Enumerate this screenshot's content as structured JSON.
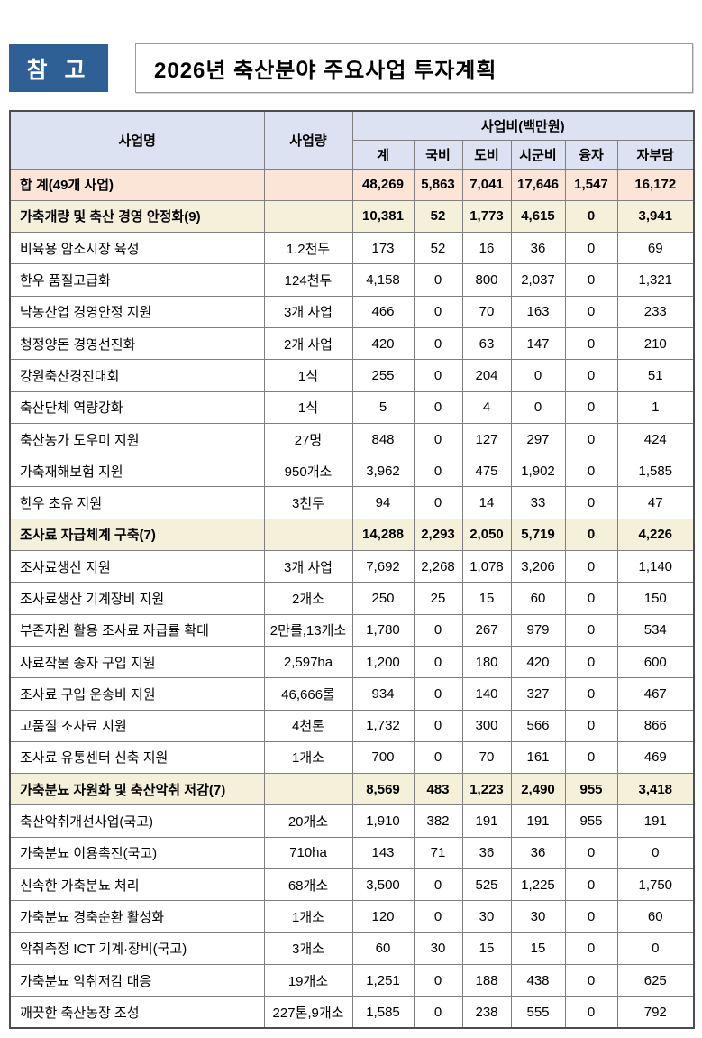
{
  "page": {
    "badge_label": "참 고",
    "title": "2026년 축산분야 주요사업 투자계획"
  },
  "colors": {
    "badge_bg": "#2e6096",
    "header_bg": "#dce2f1",
    "total_bg": "#fbe5d6",
    "section_bg": "#f5f0da",
    "border": "#7f7f7f"
  },
  "table": {
    "headers": {
      "name": "사업명",
      "quantity": "사업량",
      "cost_group": "사업비(백만원)",
      "cost_cols": [
        "계",
        "국비",
        "도비",
        "시군비",
        "융자",
        "자부담"
      ]
    },
    "rows": [
      {
        "type": "total",
        "name": "합 계(49개 사업)",
        "quantity": "",
        "values": [
          "48,269",
          "5,863",
          "7,041",
          "17,646",
          "1,547",
          "16,172"
        ]
      },
      {
        "type": "section",
        "name": "가축개량 및 축산 경영 안정화(9)",
        "quantity": "",
        "values": [
          "10,381",
          "52",
          "1,773",
          "4,615",
          "0",
          "3,941"
        ]
      },
      {
        "type": "item",
        "name": "비육용 암소시장 육성",
        "quantity": "1.2천두",
        "values": [
          "173",
          "52",
          "16",
          "36",
          "0",
          "69"
        ]
      },
      {
        "type": "item",
        "name": "한우 품질고급화",
        "quantity": "124천두",
        "values": [
          "4,158",
          "0",
          "800",
          "2,037",
          "0",
          "1,321"
        ]
      },
      {
        "type": "item",
        "name": "낙농산업 경영안정 지원",
        "quantity": "3개 사업",
        "values": [
          "466",
          "0",
          "70",
          "163",
          "0",
          "233"
        ]
      },
      {
        "type": "item",
        "name": "청정양돈 경영선진화",
        "quantity": "2개 사업",
        "values": [
          "420",
          "0",
          "63",
          "147",
          "0",
          "210"
        ]
      },
      {
        "type": "item",
        "name": "강원축산경진대회",
        "quantity": "1식",
        "values": [
          "255",
          "0",
          "204",
          "0",
          "0",
          "51"
        ]
      },
      {
        "type": "item",
        "name": "축산단체 역량강화",
        "quantity": "1식",
        "values": [
          "5",
          "0",
          "4",
          "0",
          "0",
          "1"
        ]
      },
      {
        "type": "item",
        "name": "축산농가 도우미 지원",
        "quantity": "27명",
        "values": [
          "848",
          "0",
          "127",
          "297",
          "0",
          "424"
        ]
      },
      {
        "type": "item",
        "name": "가축재해보험 지원",
        "quantity": "950개소",
        "values": [
          "3,962",
          "0",
          "475",
          "1,902",
          "0",
          "1,585"
        ]
      },
      {
        "type": "item",
        "name": "한우 초유 지원",
        "quantity": "3천두",
        "values": [
          "94",
          "0",
          "14",
          "33",
          "0",
          "47"
        ]
      },
      {
        "type": "section",
        "name": "조사료 자급체계 구축(7)",
        "quantity": "",
        "values": [
          "14,288",
          "2,293",
          "2,050",
          "5,719",
          "0",
          "4,226"
        ]
      },
      {
        "type": "item",
        "name": "조사료생산 지원",
        "quantity": "3개 사업",
        "values": [
          "7,692",
          "2,268",
          "1,078",
          "3,206",
          "0",
          "1,140"
        ]
      },
      {
        "type": "item",
        "name": "조사료생산 기계장비 지원",
        "quantity": "2개소",
        "values": [
          "250",
          "25",
          "15",
          "60",
          "0",
          "150"
        ]
      },
      {
        "type": "item",
        "name": "부존자원 활용 조사료 자급률 확대",
        "quantity": "2만롤,13개소",
        "values": [
          "1,780",
          "0",
          "267",
          "979",
          "0",
          "534"
        ]
      },
      {
        "type": "item",
        "name": "사료작물 종자 구입 지원",
        "quantity": "2,597ha",
        "values": [
          "1,200",
          "0",
          "180",
          "420",
          "0",
          "600"
        ]
      },
      {
        "type": "item",
        "name": "조사료 구입 운송비 지원",
        "quantity": "46,666롤",
        "values": [
          "934",
          "0",
          "140",
          "327",
          "0",
          "467"
        ]
      },
      {
        "type": "item",
        "name": "고품질 조사료 지원",
        "quantity": "4천톤",
        "values": [
          "1,732",
          "0",
          "300",
          "566",
          "0",
          "866"
        ]
      },
      {
        "type": "item",
        "name": "조사료 유통센터 신축 지원",
        "quantity": "1개소",
        "values": [
          "700",
          "0",
          "70",
          "161",
          "0",
          "469"
        ]
      },
      {
        "type": "section",
        "name": "가축분뇨 자원화 및 축산악취 저감(7)",
        "quantity": "",
        "values": [
          "8,569",
          "483",
          "1,223",
          "2,490",
          "955",
          "3,418"
        ]
      },
      {
        "type": "item",
        "name": "축산악취개선사업(국고)",
        "quantity": "20개소",
        "values": [
          "1,910",
          "382",
          "191",
          "191",
          "955",
          "191"
        ]
      },
      {
        "type": "item",
        "name": "가축분뇨 이용촉진(국고)",
        "quantity": "710ha",
        "values": [
          "143",
          "71",
          "36",
          "36",
          "0",
          "0"
        ]
      },
      {
        "type": "item",
        "name": "신속한 가축분뇨 처리",
        "quantity": "68개소",
        "values": [
          "3,500",
          "0",
          "525",
          "1,225",
          "0",
          "1,750"
        ]
      },
      {
        "type": "item",
        "name": "가축분뇨 경축순환 활성화",
        "quantity": "1개소",
        "values": [
          "120",
          "0",
          "30",
          "30",
          "0",
          "60"
        ]
      },
      {
        "type": "item",
        "name": "악취측정 ICT 기계·장비(국고)",
        "quantity": "3개소",
        "values": [
          "60",
          "30",
          "15",
          "15",
          "0",
          "0"
        ]
      },
      {
        "type": "item",
        "name": "가축분뇨 악취저감 대응",
        "quantity": "19개소",
        "values": [
          "1,251",
          "0",
          "188",
          "438",
          "0",
          "625"
        ]
      },
      {
        "type": "item",
        "name": "깨끗한 축산농장 조성",
        "quantity": "227톤,9개소",
        "values": [
          "1,585",
          "0",
          "238",
          "555",
          "0",
          "792"
        ]
      }
    ]
  }
}
